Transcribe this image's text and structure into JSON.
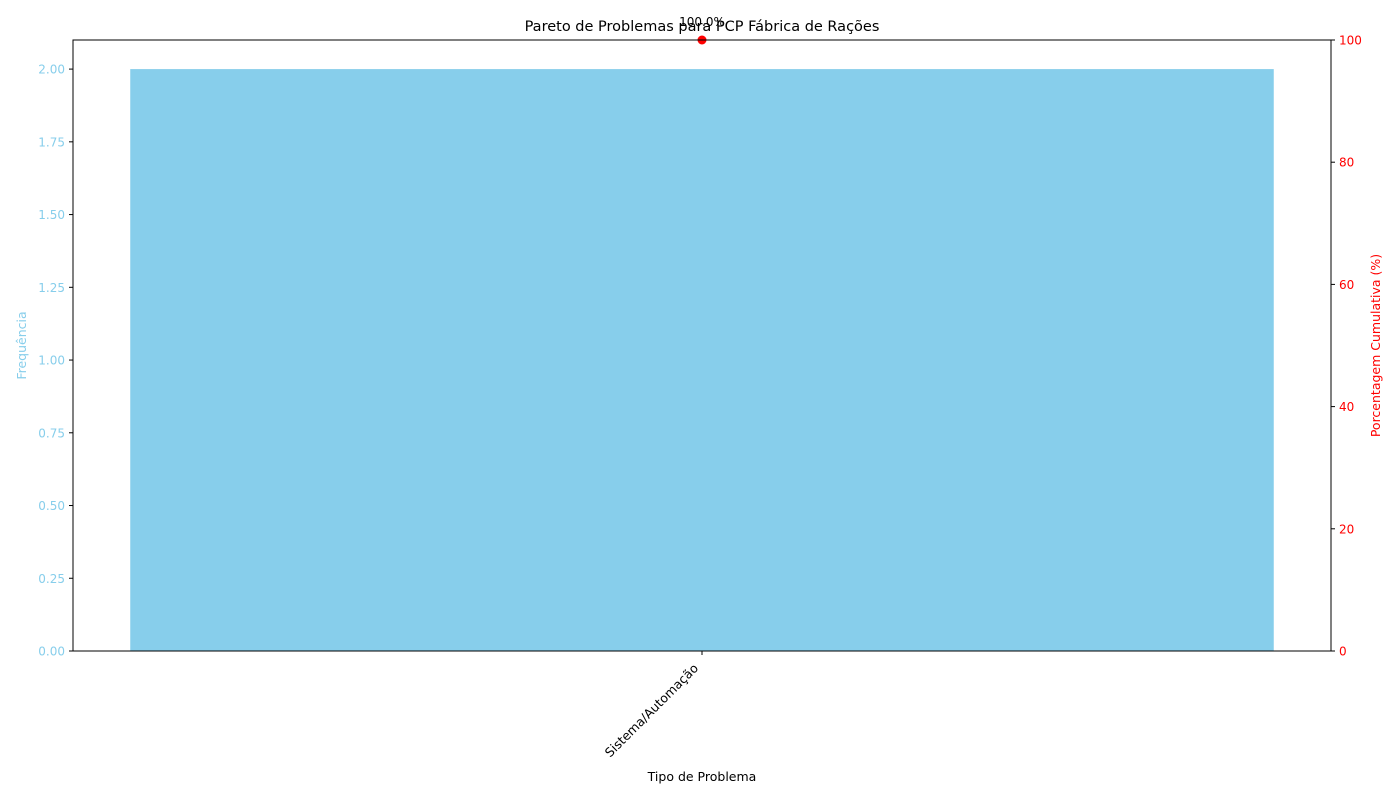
{
  "colors": {
    "bar": "#87ceeb",
    "cumulative": "#ff0000",
    "axis": "#000000",
    "background": "#ffffff"
  },
  "chart_data": {
    "type": "bar",
    "title": "Pareto de Problemas para PCP Fábrica de Rações",
    "xlabel": "Tipo de Problema",
    "ylabel": "Frequência",
    "y2label": "Porcentagem Cumulativa (%)",
    "categories": [
      "Sistema/Automação"
    ],
    "values": [
      2
    ],
    "ylim": [
      0,
      2.1
    ],
    "yticks": [
      0.0,
      0.25,
      0.5,
      0.75,
      1.0,
      1.25,
      1.5,
      1.75,
      2.0
    ],
    "ytick_labels": [
      "0.00",
      "0.25",
      "0.50",
      "0.75",
      "1.00",
      "1.25",
      "1.50",
      "1.75",
      "2.00"
    ],
    "y2lim": [
      0,
      100
    ],
    "y2ticks": [
      0,
      20,
      40,
      60,
      80,
      100
    ],
    "y2tick_labels": [
      "0",
      "20",
      "40",
      "60",
      "80",
      "100"
    ],
    "cumulative_percent": [
      100.0
    ],
    "cumulative_labels": [
      "100.0%"
    ],
    "grid": false,
    "legend": "none"
  }
}
